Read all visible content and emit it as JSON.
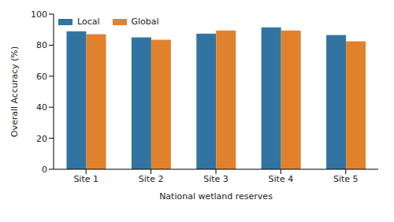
{
  "chart_data": {
    "type": "bar",
    "x_label": "National wetland reserves",
    "y_label": "Overall Accuracy (%)",
    "categories": [
      "Site 1",
      "Site 2",
      "Site 3",
      "Site 4",
      "Site 5"
    ],
    "series": [
      {
        "name": "Local",
        "color": "#3274a1",
        "values": [
          89,
          85,
          87.5,
          91.5,
          86.5
        ]
      },
      {
        "name": "Global",
        "color": "#e1812c",
        "values": [
          87,
          83.5,
          89.5,
          89.5,
          82.5
        ]
      }
    ],
    "ylim": [
      0,
      100
    ],
    "yticks": [
      0,
      20,
      40,
      60,
      80,
      100
    ],
    "grid": false,
    "legend": "upper left"
  }
}
